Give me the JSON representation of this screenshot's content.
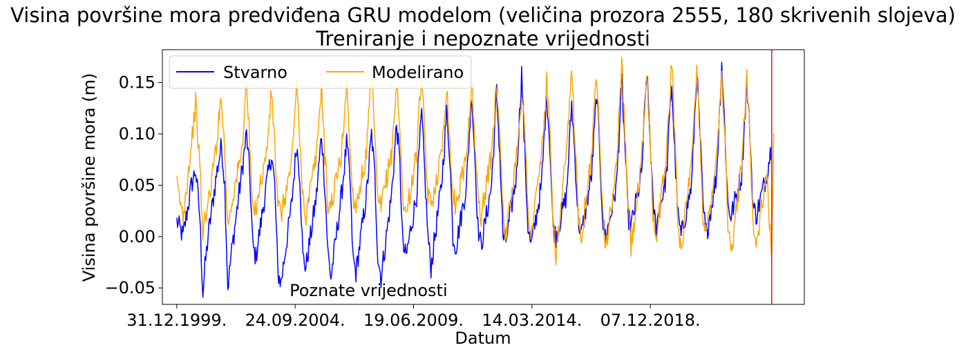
{
  "chart_data": {
    "type": "line",
    "title": "Visina površine mora predviđena GRU modelom (veličina prozora 2555, 180 skrivenih slojeva)",
    "subtitle": "Treniranje i nepoznate vrijednosti",
    "xlabel": "Datum",
    "ylabel": "Visina površine mora (m)",
    "xlim": [
      "1999-06-04",
      "2025-02-02"
    ],
    "ylim": [
      -0.066,
      0.182
    ],
    "x_ticks": [
      {
        "date": "1999-12-31",
        "label": "31.12.1999."
      },
      {
        "date": "2004-09-24",
        "label": "24.09.2004."
      },
      {
        "date": "2009-06-19",
        "label": "19.06.2009."
      },
      {
        "date": "2014-03-14",
        "label": "14.03.2014."
      },
      {
        "date": "2018-12-07",
        "label": "07.12.2018."
      }
    ],
    "y_ticks": [
      {
        "value": -0.05,
        "label": "−0.05"
      },
      {
        "value": 0.0,
        "label": "0.00"
      },
      {
        "value": 0.05,
        "label": "0.05"
      },
      {
        "value": 0.1,
        "label": "0.10"
      },
      {
        "value": 0.15,
        "label": "0.15"
      }
    ],
    "grid": false,
    "legend": {
      "placement": "upper-left",
      "columns": 2
    },
    "annotation": {
      "text": "Poznate vrijednosti",
      "x": "2007-09-01",
      "y": -0.052
    },
    "vline": {
      "x": "2023-10-15",
      "color": "#d62728"
    },
    "series": [
      {
        "name": "Stvarno",
        "color": "#0000ff",
        "x": [
          "2000-01-01",
          "2000-04-01",
          "2000-08-01",
          "2000-10-01",
          "2000-12-01",
          "2001-01-15",
          "2001-02-15",
          "2001-04-01",
          "2001-08-01",
          "2001-10-15",
          "2001-12-01",
          "2002-01-15",
          "2002-03-01",
          "2002-08-01",
          "2002-10-15",
          "2002-12-01",
          "2003-01-15",
          "2003-03-01",
          "2003-08-01",
          "2003-10-15",
          "2003-12-01",
          "2004-01-15",
          "2004-03-01",
          "2004-08-01",
          "2004-10-15",
          "2004-12-01",
          "2005-01-15",
          "2005-03-01",
          "2005-08-01",
          "2005-10-15",
          "2005-12-01",
          "2006-01-15",
          "2006-03-01",
          "2006-08-01",
          "2006-10-15",
          "2006-12-01",
          "2007-01-15",
          "2007-03-01",
          "2007-08-01",
          "2007-10-15",
          "2007-12-01",
          "2008-01-15",
          "2008-03-01",
          "2008-08-01",
          "2008-10-15",
          "2008-12-01",
          "2009-01-15",
          "2009-03-01",
          "2009-08-01",
          "2009-10-15",
          "2009-12-01",
          "2010-01-15",
          "2010-03-01",
          "2010-08-01",
          "2010-10-15",
          "2010-12-01",
          "2011-01-15",
          "2011-03-01",
          "2011-08-01",
          "2011-10-15",
          "2011-12-01",
          "2012-01-15",
          "2012-03-01",
          "2012-08-01",
          "2012-10-15",
          "2012-12-01",
          "2013-01-15",
          "2013-03-01",
          "2013-08-01",
          "2013-10-15",
          "2013-12-01",
          "2014-01-15",
          "2014-03-01",
          "2014-08-01",
          "2014-10-15",
          "2014-12-01",
          "2015-01-15",
          "2015-03-01",
          "2015-08-01",
          "2015-10-15",
          "2015-12-01",
          "2016-01-15",
          "2016-03-01",
          "2016-08-01",
          "2016-10-15",
          "2016-12-01",
          "2017-01-15",
          "2017-03-01",
          "2017-08-01",
          "2017-10-15",
          "2017-12-01",
          "2018-01-15",
          "2018-03-01",
          "2018-08-01",
          "2018-10-15",
          "2018-12-01",
          "2019-01-15",
          "2019-03-01",
          "2019-08-01",
          "2019-10-15",
          "2019-12-01",
          "2020-01-15",
          "2020-03-01",
          "2020-08-01",
          "2020-10-15",
          "2020-12-01",
          "2021-01-15",
          "2021-03-01",
          "2021-08-01",
          "2021-10-15",
          "2021-12-01",
          "2022-01-15",
          "2022-03-01",
          "2022-08-01",
          "2022-10-15",
          "2022-12-01",
          "2023-01-15",
          "2023-03-01",
          "2023-08-01",
          "2023-10-14"
        ],
        "y": [
          0.015,
          0.0,
          0.05,
          0.065,
          0.02,
          -0.055,
          -0.03,
          0.0,
          0.06,
          0.09,
          0.05,
          -0.05,
          -0.02,
          0.06,
          0.1,
          0.06,
          -0.01,
          -0.02,
          0.05,
          0.08,
          0.05,
          -0.035,
          -0.045,
          0.03,
          0.09,
          0.06,
          -0.02,
          -0.03,
          0.04,
          0.1,
          0.05,
          -0.015,
          -0.04,
          0.04,
          0.09,
          0.06,
          -0.02,
          -0.035,
          0.04,
          0.1,
          0.06,
          -0.02,
          -0.04,
          0.04,
          0.11,
          0.07,
          -0.01,
          -0.02,
          0.04,
          0.12,
          0.06,
          0.0,
          -0.03,
          0.05,
          0.12,
          0.08,
          0.0,
          -0.01,
          0.05,
          0.14,
          0.08,
          0.01,
          -0.01,
          0.05,
          0.14,
          0.08,
          0.0,
          -0.005,
          0.06,
          0.16,
          0.08,
          0.01,
          -0.01,
          0.05,
          0.14,
          0.09,
          0.01,
          0.0,
          0.04,
          0.13,
          0.08,
          0.02,
          0.0,
          0.06,
          0.14,
          0.08,
          0.01,
          0.0,
          0.05,
          0.15,
          0.09,
          0.02,
          0.01,
          0.06,
          0.16,
          0.1,
          0.03,
          0.01,
          0.06,
          0.15,
          0.08,
          0.02,
          0.0,
          0.05,
          0.16,
          0.1,
          0.03,
          0.0,
          0.06,
          0.17,
          0.1,
          0.03,
          0.02,
          0.06,
          0.15,
          0.1,
          0.03,
          0.02,
          0.06,
          0.09
        ]
      },
      {
        "name": "Modelirano",
        "color": "#ffa500",
        "x": [
          "2000-01-01",
          "2000-04-01",
          "2000-08-01",
          "2000-10-01",
          "2000-12-01",
          "2001-01-15",
          "2001-02-15",
          "2001-04-01",
          "2001-08-01",
          "2001-10-15",
          "2001-12-01",
          "2002-01-15",
          "2002-03-01",
          "2002-08-01",
          "2002-10-15",
          "2002-12-01",
          "2003-01-15",
          "2003-03-01",
          "2003-08-01",
          "2003-10-15",
          "2003-12-01",
          "2004-01-15",
          "2004-03-01",
          "2004-08-01",
          "2004-10-15",
          "2004-12-01",
          "2005-01-15",
          "2005-03-01",
          "2005-08-01",
          "2005-10-15",
          "2005-12-01",
          "2006-01-15",
          "2006-03-01",
          "2006-08-01",
          "2006-10-15",
          "2006-12-01",
          "2007-01-15",
          "2007-03-01",
          "2007-08-01",
          "2007-10-15",
          "2007-12-01",
          "2008-01-15",
          "2008-03-01",
          "2008-08-01",
          "2008-10-15",
          "2008-12-01",
          "2009-01-15",
          "2009-03-01",
          "2009-08-01",
          "2009-10-15",
          "2009-12-01",
          "2010-01-15",
          "2010-03-01",
          "2010-08-01",
          "2010-10-15",
          "2010-12-01",
          "2011-01-15",
          "2011-03-01",
          "2011-08-01",
          "2011-10-15",
          "2011-12-01",
          "2012-01-15",
          "2012-03-01",
          "2012-08-01",
          "2012-10-15",
          "2012-12-01",
          "2013-01-15",
          "2013-03-01",
          "2013-08-01",
          "2013-10-15",
          "2013-12-01",
          "2014-01-15",
          "2014-03-01",
          "2014-08-01",
          "2014-10-15",
          "2014-12-01",
          "2015-01-15",
          "2015-03-01",
          "2015-08-01",
          "2015-10-15",
          "2015-12-01",
          "2016-01-15",
          "2016-03-01",
          "2016-08-01",
          "2016-10-15",
          "2016-12-01",
          "2017-01-15",
          "2017-03-01",
          "2017-08-01",
          "2017-10-15",
          "2017-12-01",
          "2018-01-15",
          "2018-03-01",
          "2018-08-01",
          "2018-10-15",
          "2018-12-01",
          "2019-01-15",
          "2019-03-01",
          "2019-08-01",
          "2019-10-15",
          "2019-12-01",
          "2020-01-15",
          "2020-03-01",
          "2020-08-01",
          "2020-10-15",
          "2020-12-01",
          "2021-01-15",
          "2021-03-01",
          "2021-08-01",
          "2021-10-15",
          "2021-12-01",
          "2022-01-15",
          "2022-03-01",
          "2022-08-01",
          "2022-10-15",
          "2022-12-01",
          "2023-01-15",
          "2023-03-01",
          "2023-08-01",
          "2023-10-14",
          "2023-11-01",
          "2023-11-15"
        ],
        "y": [
          0.05,
          0.02,
          0.09,
          0.13,
          0.07,
          0.0,
          0.02,
          0.03,
          0.09,
          0.14,
          0.08,
          0.01,
          0.03,
          0.08,
          0.15,
          0.09,
          0.02,
          0.03,
          0.08,
          0.14,
          0.09,
          0.03,
          0.02,
          0.07,
          0.15,
          0.09,
          0.04,
          0.02,
          0.08,
          0.15,
          0.08,
          0.03,
          0.03,
          0.08,
          0.15,
          0.09,
          0.04,
          0.03,
          0.08,
          0.16,
          0.1,
          0.03,
          0.03,
          0.08,
          0.15,
          0.1,
          0.04,
          0.02,
          0.08,
          0.16,
          0.09,
          0.04,
          0.03,
          0.08,
          0.15,
          0.09,
          0.04,
          0.03,
          0.08,
          0.15,
          0.09,
          0.04,
          0.02,
          0.08,
          0.15,
          0.1,
          0.03,
          0.0,
          0.08,
          0.14,
          0.1,
          0.03,
          0.0,
          0.08,
          0.15,
          0.1,
          0.02,
          -0.02,
          0.08,
          0.16,
          0.1,
          0.03,
          0.0,
          0.08,
          0.16,
          0.1,
          0.02,
          -0.01,
          0.07,
          0.17,
          0.1,
          0.03,
          -0.01,
          0.07,
          0.16,
          0.1,
          0.02,
          0.0,
          0.08,
          0.17,
          0.1,
          0.01,
          -0.01,
          0.07,
          0.16,
          0.1,
          0.02,
          0.0,
          0.08,
          0.16,
          0.1,
          0.01,
          -0.02,
          0.07,
          0.16,
          0.1,
          0.01,
          -0.01,
          0.06,
          -0.015,
          0.05,
          0.1
        ]
      }
    ]
  }
}
